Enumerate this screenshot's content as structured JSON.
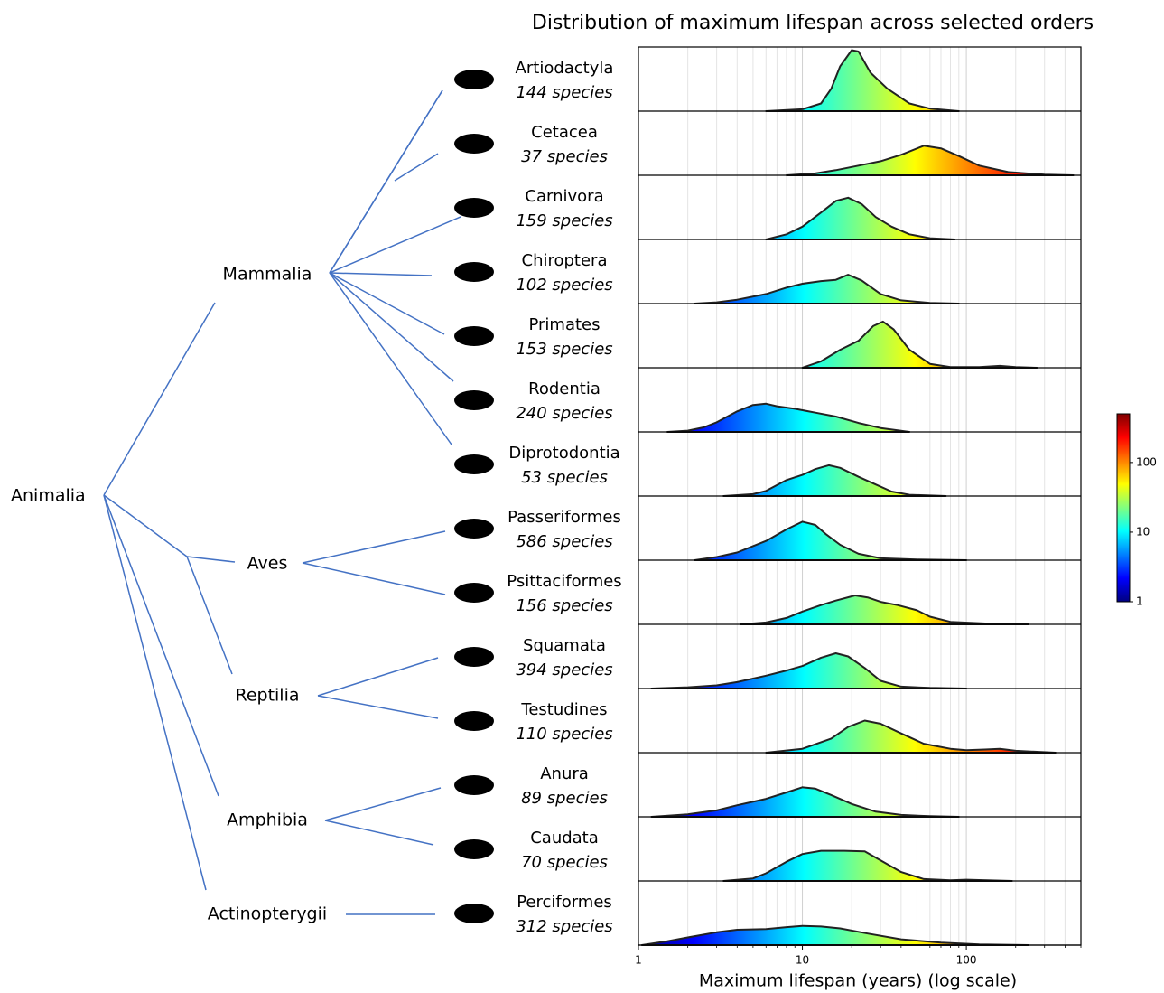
{
  "chart_data": {
    "type": "ridgeline",
    "title": "Distribution of maximum lifespan across selected orders",
    "xlabel": "Maximum lifespan (years) (log scale)",
    "xscale": "log",
    "xlim": [
      1,
      500
    ],
    "xticks": [
      1,
      10,
      100
    ],
    "xgrid": [
      2,
      3,
      4,
      5,
      6,
      7,
      8,
      9,
      20,
      30,
      40,
      50,
      60,
      70,
      80,
      90,
      200,
      300,
      400,
      500
    ],
    "ylim": [
      0,
      1
    ],
    "colormap": "jet",
    "colorbar": {
      "clim": [
        1,
        500
      ],
      "ticks": [
        1,
        10,
        100
      ]
    },
    "root": "Animalia",
    "groups": [
      {
        "name": "Mammalia",
        "series": [
          {
            "name": "Artiodactyla",
            "species": "144 species",
            "x": [
              6,
              10,
              13,
              15,
              17,
              20,
              22,
              26,
              33,
              45,
              60,
              90
            ],
            "values": [
              0,
              0.03,
              0.12,
              0.35,
              0.7,
              0.95,
              0.93,
              0.6,
              0.35,
              0.12,
              0.04,
              0
            ]
          },
          {
            "name": "Cetacea",
            "species": "37 species",
            "x": [
              8,
              12,
              16,
              22,
              30,
              40,
              55,
              70,
              90,
              120,
              180,
              300,
              450
            ],
            "values": [
              0,
              0.03,
              0.08,
              0.15,
              0.22,
              0.32,
              0.46,
              0.42,
              0.3,
              0.15,
              0.05,
              0.01,
              0
            ]
          },
          {
            "name": "Carnivora",
            "species": "159 species",
            "x": [
              6,
              8,
              10,
              13,
              16,
              19,
              23,
              28,
              35,
              45,
              60,
              85
            ],
            "values": [
              0,
              0.08,
              0.2,
              0.42,
              0.6,
              0.65,
              0.55,
              0.35,
              0.2,
              0.08,
              0.02,
              0
            ]
          },
          {
            "name": "Chiroptera",
            "species": "102 species",
            "x": [
              2.2,
              3,
              4,
              6,
              8,
              10,
              13,
              16,
              19,
              23,
              30,
              40,
              60,
              90
            ],
            "values": [
              0,
              0.02,
              0.06,
              0.15,
              0.25,
              0.31,
              0.35,
              0.37,
              0.45,
              0.36,
              0.15,
              0.05,
              0.01,
              0
            ]
          },
          {
            "name": "Primates",
            "species": "153 species",
            "x": [
              10,
              13,
              17,
              22,
              27,
              31,
              36,
              45,
              60,
              80,
              120,
              160,
              200,
              270
            ],
            "values": [
              0,
              0.1,
              0.28,
              0.42,
              0.65,
              0.72,
              0.6,
              0.28,
              0.06,
              0.01,
              0.01,
              0.03,
              0.01,
              0
            ]
          },
          {
            "name": "Rodentia",
            "species": "240 species",
            "x": [
              1.5,
              2,
              2.5,
              3,
              4,
              5,
              6,
              7,
              9,
              12,
              16,
              22,
              30,
              45
            ],
            "values": [
              0,
              0.02,
              0.07,
              0.15,
              0.32,
              0.42,
              0.44,
              0.4,
              0.36,
              0.3,
              0.24,
              0.14,
              0.06,
              0
            ]
          },
          {
            "name": "Diprotodontia",
            "species": "53 species",
            "x": [
              3.3,
              5,
              6,
              8,
              10,
              12,
              14.5,
              17,
              22,
              28,
              35,
              45,
              75
            ],
            "values": [
              0,
              0.03,
              0.08,
              0.25,
              0.33,
              0.42,
              0.48,
              0.44,
              0.3,
              0.18,
              0.07,
              0.02,
              0
            ]
          }
        ]
      },
      {
        "name": "Aves",
        "series": [
          {
            "name": "Passeriformes",
            "species": "586 species",
            "x": [
              2.2,
              3,
              4,
              5,
              6,
              8,
              10,
              12,
              14,
              17,
              22,
              30,
              50,
              100
            ],
            "values": [
              0,
              0.05,
              0.12,
              0.22,
              0.3,
              0.48,
              0.6,
              0.55,
              0.4,
              0.24,
              0.1,
              0.03,
              0.01,
              0
            ]
          },
          {
            "name": "Psittaciformes",
            "species": "156 species",
            "x": [
              4.2,
              6,
              8,
              10,
              13,
              16,
              21,
              25,
              30,
              38,
              50,
              60,
              80,
              140,
              240
            ],
            "values": [
              0,
              0.03,
              0.1,
              0.2,
              0.3,
              0.37,
              0.45,
              0.42,
              0.35,
              0.3,
              0.22,
              0.12,
              0.04,
              0.01,
              0
            ]
          }
        ]
      },
      {
        "name": "Reptilia",
        "series": [
          {
            "name": "Squamata",
            "species": "394 species",
            "x": [
              1.2,
              2,
              3,
              4,
              6,
              8,
              10,
              13,
              16,
              19,
              24,
              30,
              40,
              60,
              100
            ],
            "values": [
              0,
              0.02,
              0.05,
              0.1,
              0.2,
              0.28,
              0.35,
              0.48,
              0.55,
              0.5,
              0.32,
              0.12,
              0.03,
              0.01,
              0
            ]
          },
          {
            "name": "Testudines",
            "species": "110 species",
            "x": [
              6,
              10,
              15,
              19,
              24,
              30,
              40,
              55,
              80,
              100,
              130,
              160,
              200,
              350
            ],
            "values": [
              0,
              0.06,
              0.22,
              0.4,
              0.5,
              0.45,
              0.3,
              0.14,
              0.06,
              0.04,
              0.05,
              0.06,
              0.03,
              0
            ]
          }
        ]
      },
      {
        "name": "Amphibia",
        "series": [
          {
            "name": "Anura",
            "species": "89 species",
            "x": [
              1.2,
              2,
              3,
              4,
              6,
              8,
              10,
              12,
              15,
              20,
              28,
              40,
              60,
              90
            ],
            "values": [
              0,
              0.04,
              0.1,
              0.18,
              0.28,
              0.38,
              0.46,
              0.44,
              0.34,
              0.2,
              0.08,
              0.03,
              0.01,
              0
            ]
          },
          {
            "name": "Caudata",
            "species": "70 species",
            "x": [
              3.3,
              5,
              6,
              8,
              10,
              13,
              18,
              24,
              30,
              40,
              55,
              80,
              100,
              190
            ],
            "values": [
              0,
              0.04,
              0.12,
              0.3,
              0.42,
              0.47,
              0.47,
              0.46,
              0.32,
              0.14,
              0.03,
              0.01,
              0.02,
              0
            ]
          }
        ]
      },
      {
        "name": "Actinopterygii",
        "series": [
          {
            "name": "Perciformes",
            "species": "312 species",
            "x": [
              1.05,
              1.5,
              2,
              3,
              4,
              6,
              8,
              10,
              13,
              17,
              25,
              40,
              70,
              120,
              240
            ],
            "values": [
              0,
              0.06,
              0.12,
              0.2,
              0.24,
              0.25,
              0.28,
              0.3,
              0.29,
              0.26,
              0.18,
              0.09,
              0.04,
              0.01,
              0
            ]
          }
        ]
      }
    ]
  }
}
